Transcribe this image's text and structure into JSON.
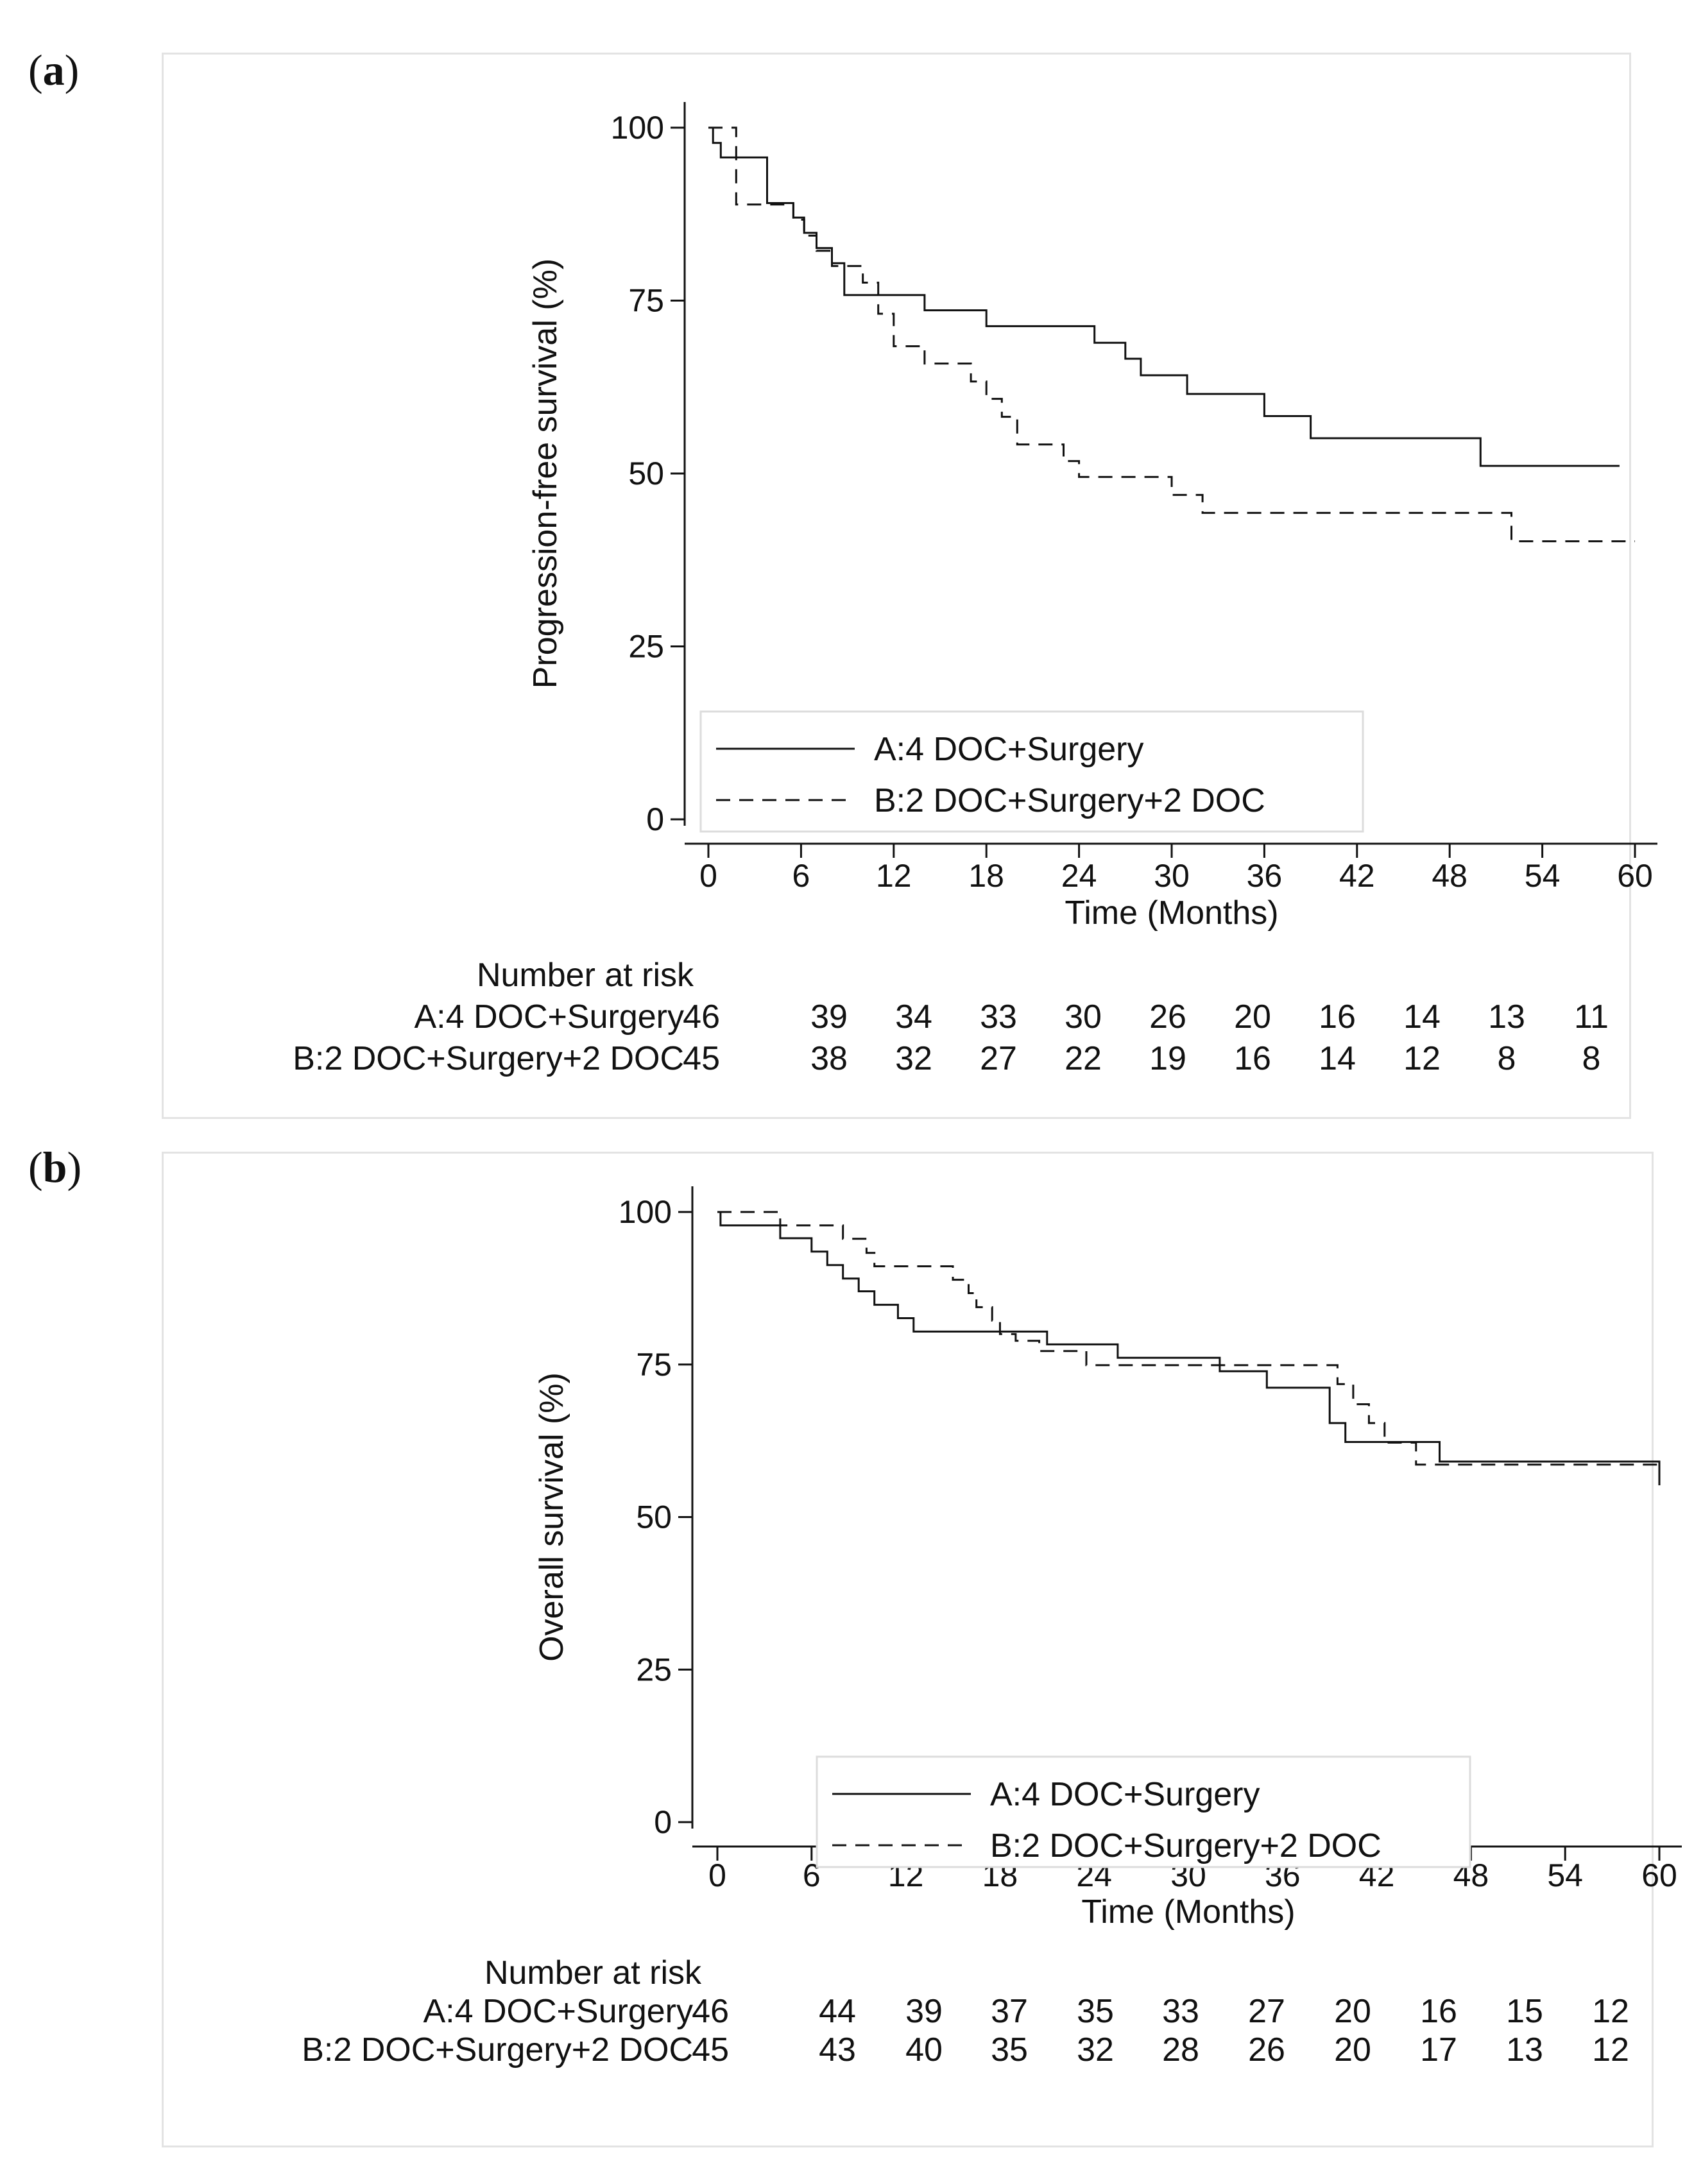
{
  "panel_a_label": {
    "open": "(",
    "letter": "a",
    "close": ")"
  },
  "panel_b_label": {
    "open": "(",
    "letter": "b",
    "close": ")"
  },
  "chart_data": [
    {
      "type": "line",
      "subtype": "kaplan-meier",
      "panel": "a",
      "ylabel": "Progression-free survival (%)",
      "xlabel": "Time (Months)",
      "xlim": [
        0,
        60
      ],
      "ylim": [
        0,
        100
      ],
      "xticks": [
        0,
        6,
        12,
        18,
        24,
        30,
        36,
        42,
        48,
        54,
        60
      ],
      "yticks": [
        0,
        25,
        50,
        75,
        100
      ],
      "legend_position": "bottom-left",
      "series": [
        {
          "name": "A:4 DOC+Surgery",
          "style": "solid",
          "color": "#111111",
          "points": [
            [
              0,
              100
            ],
            [
              0.3,
              100
            ],
            [
              0.3,
              97.8
            ],
            [
              0.8,
              97.8
            ],
            [
              0.8,
              95.7
            ],
            [
              3.8,
              95.7
            ],
            [
              3.8,
              89.1
            ],
            [
              5.5,
              89.1
            ],
            [
              5.5,
              87
            ],
            [
              6.2,
              87
            ],
            [
              6.2,
              84.8
            ],
            [
              7,
              84.8
            ],
            [
              7,
              82.6
            ],
            [
              8,
              82.6
            ],
            [
              8,
              80.4
            ],
            [
              8.8,
              80.4
            ],
            [
              8.8,
              75.8
            ],
            [
              14,
              75.8
            ],
            [
              14,
              73.6
            ],
            [
              18,
              73.6
            ],
            [
              18,
              71.3
            ],
            [
              25,
              71.3
            ],
            [
              25,
              68.9
            ],
            [
              27,
              68.9
            ],
            [
              27,
              66.6
            ],
            [
              28,
              66.6
            ],
            [
              28,
              64.2
            ],
            [
              31,
              64.2
            ],
            [
              31,
              61.5
            ],
            [
              36,
              61.5
            ],
            [
              36,
              58.3
            ],
            [
              39,
              58.3
            ],
            [
              39,
              55.1
            ],
            [
              50,
              55.1
            ],
            [
              50,
              51.1
            ],
            [
              59,
              51.1
            ]
          ]
        },
        {
          "name": "B:2 DOC+Surgery+2 DOC",
          "style": "dashed",
          "color": "#111111",
          "points": [
            [
              0,
              100
            ],
            [
              1.8,
              100
            ],
            [
              1.8,
              88.9
            ],
            [
              5.5,
              88.9
            ],
            [
              5.5,
              86.7
            ],
            [
              6.2,
              86.7
            ],
            [
              6.2,
              84.4
            ],
            [
              7,
              84.4
            ],
            [
              7,
              82.2
            ],
            [
              8,
              82.2
            ],
            [
              8,
              80
            ],
            [
              10,
              80
            ],
            [
              10,
              77.6
            ],
            [
              11,
              77.6
            ],
            [
              11,
              73.1
            ],
            [
              12,
              73.1
            ],
            [
              12,
              68.4
            ],
            [
              14,
              68.4
            ],
            [
              14,
              65.9
            ],
            [
              17,
              65.9
            ],
            [
              17,
              63.3
            ],
            [
              18,
              63.3
            ],
            [
              18,
              60.8
            ],
            [
              19,
              60.8
            ],
            [
              19,
              58.2
            ],
            [
              20,
              58.2
            ],
            [
              20,
              54.2
            ],
            [
              23,
              54.2
            ],
            [
              23,
              51.8
            ],
            [
              24,
              51.8
            ],
            [
              24,
              49.5
            ],
            [
              30,
              49.5
            ],
            [
              30,
              46.9
            ],
            [
              32,
              46.9
            ],
            [
              32,
              44.3
            ],
            [
              52,
              44.3
            ],
            [
              52,
              40.2
            ],
            [
              60,
              40.2
            ]
          ]
        }
      ],
      "risk_table": {
        "title": "Number at risk",
        "rows": [
          {
            "label": "A:4 DOC+Surgery",
            "values": [
              "46",
              "39",
              "34",
              "33",
              "30",
              "26",
              "20",
              "16",
              "14",
              "13",
              "11"
            ]
          },
          {
            "label": "B:2 DOC+Surgery+2 DOC",
            "values": [
              "45",
              "38",
              "32",
              "27",
              "22",
              "19",
              "16",
              "14",
              "12",
              "8",
              "8"
            ]
          }
        ]
      }
    },
    {
      "type": "line",
      "subtype": "kaplan-meier",
      "panel": "b",
      "ylabel": "Overall survival (%)",
      "xlabel": "Time (Months)",
      "xlim": [
        0,
        60
      ],
      "ylim": [
        0,
        100
      ],
      "xticks": [
        0,
        6,
        12,
        18,
        24,
        30,
        36,
        42,
        48,
        54,
        60
      ],
      "yticks": [
        0,
        25,
        50,
        75,
        100
      ],
      "legend_position": "bottom-right",
      "series": [
        {
          "name": "A:4 DOC+Surgery",
          "style": "solid",
          "color": "#111111",
          "points": [
            [
              0,
              100
            ],
            [
              0.2,
              100
            ],
            [
              0.2,
              97.8
            ],
            [
              4,
              97.8
            ],
            [
              4,
              95.7
            ],
            [
              6,
              95.7
            ],
            [
              6,
              93.5
            ],
            [
              7,
              93.5
            ],
            [
              7,
              91.3
            ],
            [
              8,
              91.3
            ],
            [
              8,
              89.1
            ],
            [
              9,
              89.1
            ],
            [
              9,
              87
            ],
            [
              10,
              87
            ],
            [
              10,
              84.8
            ],
            [
              11.5,
              84.8
            ],
            [
              11.5,
              82.6
            ],
            [
              12.5,
              82.6
            ],
            [
              12.5,
              80.4
            ],
            [
              21,
              80.4
            ],
            [
              21,
              78.3
            ],
            [
              25.5,
              78.3
            ],
            [
              25.5,
              76.1
            ],
            [
              32,
              76.1
            ],
            [
              32,
              73.9
            ],
            [
              35,
              73.9
            ],
            [
              35,
              71.2
            ],
            [
              39,
              71.2
            ],
            [
              39,
              65.4
            ],
            [
              40,
              65.4
            ],
            [
              40,
              62.3
            ],
            [
              46,
              62.3
            ],
            [
              46,
              59.1
            ],
            [
              60,
              59.1
            ],
            [
              60,
              56.3
            ]
          ]
        },
        {
          "name": "B:2 DOC+Surgery+2 DOC",
          "style": "dashed",
          "color": "#111111",
          "points": [
            [
              0,
              100
            ],
            [
              4,
              100
            ],
            [
              4,
              97.8
            ],
            [
              8,
              97.8
            ],
            [
              8,
              95.6
            ],
            [
              9.5,
              95.6
            ],
            [
              9.5,
              93.3
            ],
            [
              10,
              93.3
            ],
            [
              10,
              91.1
            ],
            [
              15,
              91.1
            ],
            [
              15,
              88.9
            ],
            [
              16,
              88.9
            ],
            [
              16,
              86.7
            ],
            [
              16.5,
              86.7
            ],
            [
              16.5,
              84.4
            ],
            [
              17.5,
              84.4
            ],
            [
              17.5,
              82.2
            ],
            [
              18,
              82.2
            ],
            [
              18,
              80
            ],
            [
              19,
              80
            ],
            [
              19,
              78.9
            ],
            [
              20.5,
              78.9
            ],
            [
              20.5,
              77.2
            ],
            [
              23.5,
              77.2
            ],
            [
              23.5,
              74.9
            ],
            [
              39.5,
              74.9
            ],
            [
              39.5,
              71.8
            ],
            [
              40.5,
              71.8
            ],
            [
              40.5,
              68.5
            ],
            [
              41.5,
              68.5
            ],
            [
              41.5,
              65.4
            ],
            [
              42.5,
              65.4
            ],
            [
              42.5,
              62.2
            ],
            [
              44.5,
              62.2
            ],
            [
              44.5,
              58.6
            ],
            [
              60,
              58.6
            ],
            [
              60,
              54.8
            ]
          ]
        }
      ],
      "risk_table": {
        "title": "Number at risk",
        "rows": [
          {
            "label": "A:4 DOC+Surgery",
            "values": [
              "46",
              "44",
              "39",
              "37",
              "35",
              "33",
              "27",
              "20",
              "16",
              "15",
              "12"
            ]
          },
          {
            "label": "B:2 DOC+Surgery+2 DOC",
            "values": [
              "45",
              "43",
              "40",
              "35",
              "32",
              "28",
              "26",
              "20",
              "17",
              "13",
              "12"
            ]
          }
        ]
      }
    }
  ]
}
